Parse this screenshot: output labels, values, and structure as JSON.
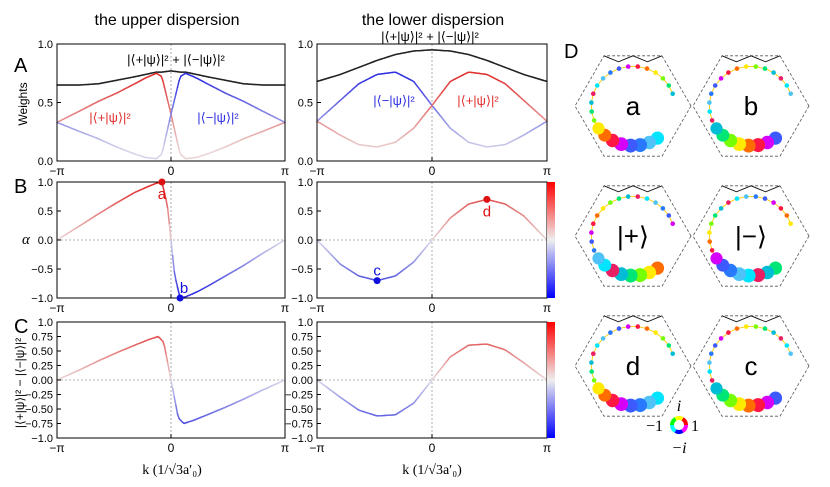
{
  "figure": {
    "col_titles": [
      "the upper dispersion",
      "the lower dispersion"
    ],
    "panel_letters": [
      "A",
      "B",
      "C",
      "D"
    ],
    "y_labels": [
      "Weights",
      "α",
      "|⟨+|ψ⟩|² − |⟨−|ψ⟩|²"
    ],
    "x_label": "k (1/√3a′₀)",
    "x_ticks": [
      "−π",
      "0",
      "π"
    ],
    "weights_y_ticks": [
      "0.0",
      "0.5",
      "1.0"
    ],
    "alpha_y_ticks": [
      "−1.0",
      "−0.5",
      "0.0",
      "0.5",
      "1.0"
    ],
    "diff_y_ticks": [
      "−1.0",
      "−0.75",
      "−0.50",
      "−0.25",
      "0.00",
      "0.25",
      "0.50",
      "0.75",
      "1.0"
    ],
    "annotations": {
      "upper_sum": "|⟨+|ψ⟩|² + |⟨−|ψ⟩|²",
      "upper_plus": "|⟨+|ψ⟩|²",
      "upper_minus": "|⟨−|ψ⟩|²",
      "lower_sum": "|⟨+|ψ⟩|² + |⟨−|ψ⟩|²",
      "lower_minus": "|⟨−|ψ⟩|²",
      "lower_plus": "|⟨+|ψ⟩|²"
    },
    "points": [
      {
        "label": "a",
        "color": "#dd1111"
      },
      {
        "label": "b",
        "color": "#1111dd"
      },
      {
        "label": "c",
        "color": "#1111dd"
      },
      {
        "label": "d",
        "color": "#dd1111"
      }
    ],
    "hex_labels": [
      "a",
      "b",
      "|+⟩",
      "|−⟩",
      "d",
      "c"
    ],
    "phase_legend": {
      "top": "i",
      "left": "−1",
      "right": "1",
      "bottom": "−i"
    },
    "colors": {
      "red": "#e03030",
      "blue": "#3030e0",
      "black": "#222222",
      "grid": "#999999"
    }
  },
  "chart_data": [
    {
      "type": "line",
      "title": "the upper dispersion — Weights",
      "xlabel": "k (1/√3a′₀)",
      "ylabel": "Weights",
      "xlim": [
        -3.1416,
        3.1416
      ],
      "ylim": [
        0,
        1
      ],
      "x": [
        -3.14,
        -2.5,
        -2.0,
        -1.5,
        -1.0,
        -0.7,
        -0.4,
        -0.25,
        0.0,
        0.25,
        0.4,
        0.7,
        1.0,
        1.5,
        2.0,
        2.5,
        3.14
      ],
      "series": [
        {
          "name": "sum",
          "values": [
            0.65,
            0.65,
            0.66,
            0.69,
            0.72,
            0.74,
            0.76,
            0.76,
            0.77,
            0.76,
            0.76,
            0.74,
            0.72,
            0.69,
            0.66,
            0.65,
            0.65
          ]
        },
        {
          "name": "plus",
          "values": [
            0.33,
            0.43,
            0.51,
            0.58,
            0.66,
            0.71,
            0.75,
            0.72,
            0.4,
            0.06,
            0.02,
            0.03,
            0.06,
            0.12,
            0.19,
            0.25,
            0.33
          ]
        },
        {
          "name": "minus",
          "values": [
            0.33,
            0.25,
            0.19,
            0.12,
            0.06,
            0.03,
            0.02,
            0.06,
            0.4,
            0.72,
            0.75,
            0.71,
            0.66,
            0.58,
            0.51,
            0.43,
            0.33
          ]
        }
      ]
    },
    {
      "type": "line",
      "title": "the lower dispersion — Weights",
      "xlabel": "k (1/√3a′₀)",
      "ylabel": "Weights",
      "xlim": [
        -3.1416,
        3.1416
      ],
      "ylim": [
        0,
        1
      ],
      "x": [
        -3.14,
        -2.5,
        -2.0,
        -1.5,
        -1.0,
        -0.5,
        0.0,
        0.5,
        1.0,
        1.5,
        2.0,
        2.5,
        3.14
      ],
      "series": [
        {
          "name": "sum",
          "values": [
            0.68,
            0.74,
            0.8,
            0.86,
            0.91,
            0.94,
            0.95,
            0.94,
            0.91,
            0.86,
            0.8,
            0.74,
            0.68
          ]
        },
        {
          "name": "minus",
          "values": [
            0.34,
            0.52,
            0.66,
            0.74,
            0.76,
            0.68,
            0.475,
            0.28,
            0.16,
            0.12,
            0.14,
            0.22,
            0.34
          ]
        },
        {
          "name": "plus",
          "values": [
            0.34,
            0.22,
            0.14,
            0.12,
            0.16,
            0.28,
            0.475,
            0.68,
            0.76,
            0.74,
            0.66,
            0.52,
            0.34
          ]
        }
      ]
    },
    {
      "type": "line",
      "title": "the upper dispersion — α",
      "xlabel": "k (1/√3a′₀)",
      "ylabel": "α",
      "xlim": [
        -3.1416,
        3.1416
      ],
      "ylim": [
        -1,
        1
      ],
      "x": [
        -3.14,
        -2.5,
        -2.0,
        -1.5,
        -1.0,
        -0.6,
        -0.4,
        -0.25,
        -0.1,
        0.0,
        0.1,
        0.25,
        0.4,
        0.7,
        1.0,
        1.5,
        2.0,
        2.5,
        3.14
      ],
      "series": [
        {
          "name": "alpha",
          "values": [
            0.0,
            0.25,
            0.45,
            0.64,
            0.82,
            0.93,
            0.98,
            1.0,
            0.6,
            0.0,
            -0.6,
            -1.0,
            -0.98,
            -0.9,
            -0.8,
            -0.62,
            -0.44,
            -0.24,
            0.0
          ]
        }
      ],
      "marked_points": [
        {
          "label": "a",
          "x": -0.25,
          "y": 1.0
        },
        {
          "label": "b",
          "x": 0.25,
          "y": -1.0
        }
      ]
    },
    {
      "type": "line",
      "title": "the lower dispersion — α",
      "xlabel": "k (1/√3a′₀)",
      "ylabel": "α",
      "xlim": [
        -3.1416,
        3.1416
      ],
      "ylim": [
        -1,
        1
      ],
      "x": [
        -3.14,
        -2.5,
        -2.0,
        -1.5,
        -1.0,
        -0.5,
        0.0,
        0.5,
        1.0,
        1.5,
        2.0,
        2.5,
        3.14
      ],
      "series": [
        {
          "name": "alpha",
          "values": [
            0.0,
            -0.42,
            -0.62,
            -0.7,
            -0.62,
            -0.38,
            0.0,
            0.38,
            0.62,
            0.7,
            0.62,
            0.42,
            0.0
          ]
        }
      ],
      "marked_points": [
        {
          "label": "c",
          "x": -1.5,
          "y": -0.7
        },
        {
          "label": "d",
          "x": 1.5,
          "y": 0.7
        }
      ]
    },
    {
      "type": "line",
      "title": "the upper dispersion — |⟨+|ψ⟩|² − |⟨−|ψ⟩|²",
      "xlabel": "k (1/√3a′₀)",
      "ylabel": "|⟨+|ψ⟩|² − |⟨−|ψ⟩|²",
      "xlim": [
        -3.1416,
        3.1416
      ],
      "ylim": [
        -1,
        1
      ],
      "x": [
        -3.14,
        -2.5,
        -2.0,
        -1.5,
        -1.0,
        -0.6,
        -0.35,
        -0.2,
        0.0,
        0.2,
        0.35,
        0.6,
        1.0,
        1.5,
        2.0,
        2.5,
        3.14
      ],
      "series": [
        {
          "name": "difference",
          "values": [
            0.0,
            0.18,
            0.33,
            0.47,
            0.6,
            0.7,
            0.75,
            0.65,
            0.0,
            -0.65,
            -0.75,
            -0.7,
            -0.6,
            -0.47,
            -0.33,
            -0.18,
            0.0
          ]
        }
      ]
    },
    {
      "type": "line",
      "title": "the lower dispersion — |⟨+|ψ⟩|² − |⟨−|ψ⟩|²",
      "xlabel": "k (1/√3a′₀)",
      "ylabel": "|⟨+|ψ⟩|² − |⟨−|ψ⟩|²",
      "xlim": [
        -3.1416,
        3.1416
      ],
      "ylim": [
        -1,
        1
      ],
      "x": [
        -3.14,
        -2.5,
        -2.0,
        -1.5,
        -1.0,
        -0.5,
        0.0,
        0.5,
        1.0,
        1.5,
        2.0,
        2.5,
        3.14
      ],
      "series": [
        {
          "name": "difference",
          "values": [
            0.0,
            -0.3,
            -0.52,
            -0.62,
            -0.6,
            -0.4,
            0.0,
            0.4,
            0.6,
            0.62,
            0.52,
            0.3,
            0.0
          ]
        }
      ]
    }
  ]
}
